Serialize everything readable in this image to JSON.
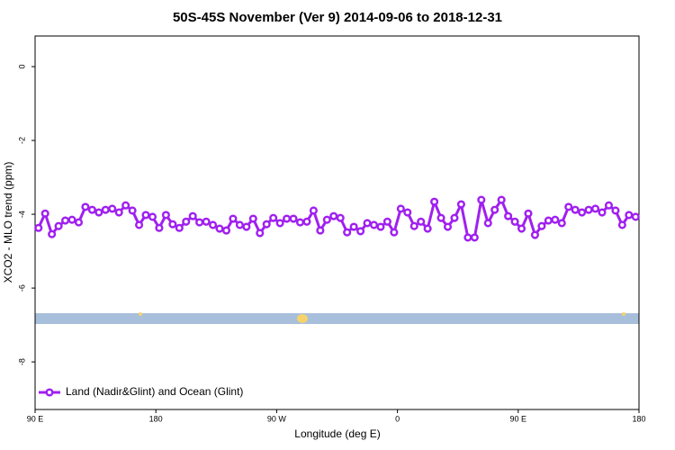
{
  "chart_data": {
    "type": "line",
    "title": "50S-45S November (Ver 9)   2014-09-06 to 2018-12-31",
    "x_label": "Longitude (deg E)",
    "y_label": "XCO2 - MLO trend (ppm)",
    "xlim": [
      90,
      540
    ],
    "ylim": [
      -9.29,
      0.83
    ],
    "xticks": [
      {
        "value": 90,
        "label": "90 E"
      },
      180,
      {
        "value": 270,
        "label": "90 W"
      },
      {
        "value": 360,
        "label": "0"
      },
      {
        "value": 450,
        "label": "90 E"
      },
      {
        "value": 540,
        "label": "180"
      }
    ],
    "yticks": [
      0,
      -2,
      -4,
      -6,
      -8
    ],
    "legend": "bottom-left",
    "series": [
      {
        "name": "Land (Nadir&Glint) and Ocean (Glint)",
        "color": "#a020f0",
        "x": [
          92.5,
          97.5,
          102.5,
          107.5,
          112.5,
          117.5,
          122.5,
          127.5,
          132.5,
          137.5,
          142.5,
          147.5,
          152.5,
          157.5,
          162.5,
          167.5,
          172.5,
          177.5,
          182.5,
          187.5,
          192.5,
          197.5,
          202.5,
          207.5,
          212.5,
          217.5,
          222.5,
          227.5,
          232.5,
          237.5,
          242.5,
          247.5,
          252.5,
          257.5,
          262.5,
          267.5,
          272.5,
          277.5,
          282.5,
          287.5,
          292.5,
          297.5,
          302.5,
          307.5,
          312.5,
          317.5,
          322.5,
          327.5,
          332.5,
          337.5,
          342.5,
          347.5,
          352.5,
          357.5,
          362.5,
          367.5,
          372.5,
          377.5,
          382.5,
          387.5,
          392.5,
          397.5,
          402.5,
          407.5,
          412.5,
          417.5,
          422.5,
          427.5,
          432.5,
          437.5,
          442.5,
          447.5,
          452.5,
          457.5,
          462.5,
          467.5,
          472.5,
          477.5,
          482.5,
          487.5,
          492.5,
          497.5,
          502.5,
          507.5,
          512.5,
          517.5,
          522.5,
          527.5,
          532.5,
          537.5
        ],
        "values": [
          -4.37,
          -3.98,
          -4.54,
          -4.32,
          -4.17,
          -4.15,
          -4.22,
          -3.8,
          -3.88,
          -3.95,
          -3.88,
          -3.85,
          -3.95,
          -3.76,
          -3.9,
          -4.29,
          -4.02,
          -4.07,
          -4.37,
          -4.02,
          -4.27,
          -4.37,
          -4.2,
          -4.05,
          -4.22,
          -4.2,
          -4.29,
          -4.39,
          -4.44,
          -4.12,
          -4.29,
          -4.34,
          -4.12,
          -4.51,
          -4.27,
          -4.1,
          -4.24,
          -4.12,
          -4.12,
          -4.22,
          -4.2,
          -3.9,
          -4.44,
          -4.15,
          -4.05,
          -4.1,
          -4.49,
          -4.34,
          -4.46,
          -4.24,
          -4.29,
          -4.34,
          -4.2,
          -4.49,
          -3.85,
          -3.95,
          -4.32,
          -4.2,
          -4.39,
          -3.66,
          -4.1,
          -4.34,
          -4.1,
          -3.73,
          -4.63,
          -4.63,
          -3.61,
          -4.24,
          -3.88,
          -3.61,
          -4.05,
          -4.2,
          -4.39,
          -3.98,
          -4.56,
          -4.32,
          -4.17,
          -4.15,
          -4.24,
          -3.8,
          -3.88,
          -3.95,
          -3.88,
          -3.85,
          -3.95,
          -3.76,
          -3.9,
          -4.29,
          -4.02,
          -4.07
        ]
      }
    ]
  }
}
